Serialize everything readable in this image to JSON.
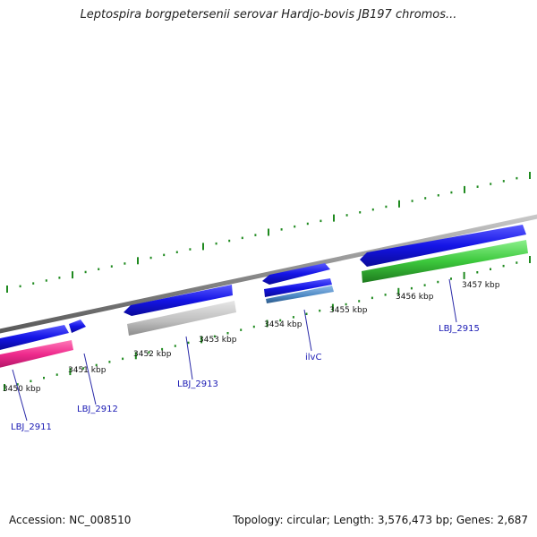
{
  "title": "Leptospira borgpetersenii serovar Hardjo-bovis JB197 chromos...",
  "footer": {
    "accession": "Accession: NC_008510",
    "summary": "Topology: circular; Length: 3,576,473 bp; Genes: 2,687"
  },
  "tick_labels": [
    "3450 kbp",
    "3451 kbp",
    "3452 kbp",
    "3453 kbp",
    "3454 kbp",
    "3455 kbp",
    "3456 kbp",
    "3457 kbp"
  ],
  "gene_labels": [
    "LBJ_2911",
    "LBJ_2912",
    "LBJ_2913",
    "ilvC",
    "LBJ_2915"
  ],
  "colors": {
    "backbone": "#8a8a8a",
    "tick": "#1f8a1f",
    "gene_blue": "#1414e6",
    "gene_pink": "#ee2a8c",
    "gene_gray": "#bdbdbd",
    "gene_steel": "#4a86c2",
    "gene_green": "#3cc83c",
    "gene_label": "#1a1ab4"
  }
}
